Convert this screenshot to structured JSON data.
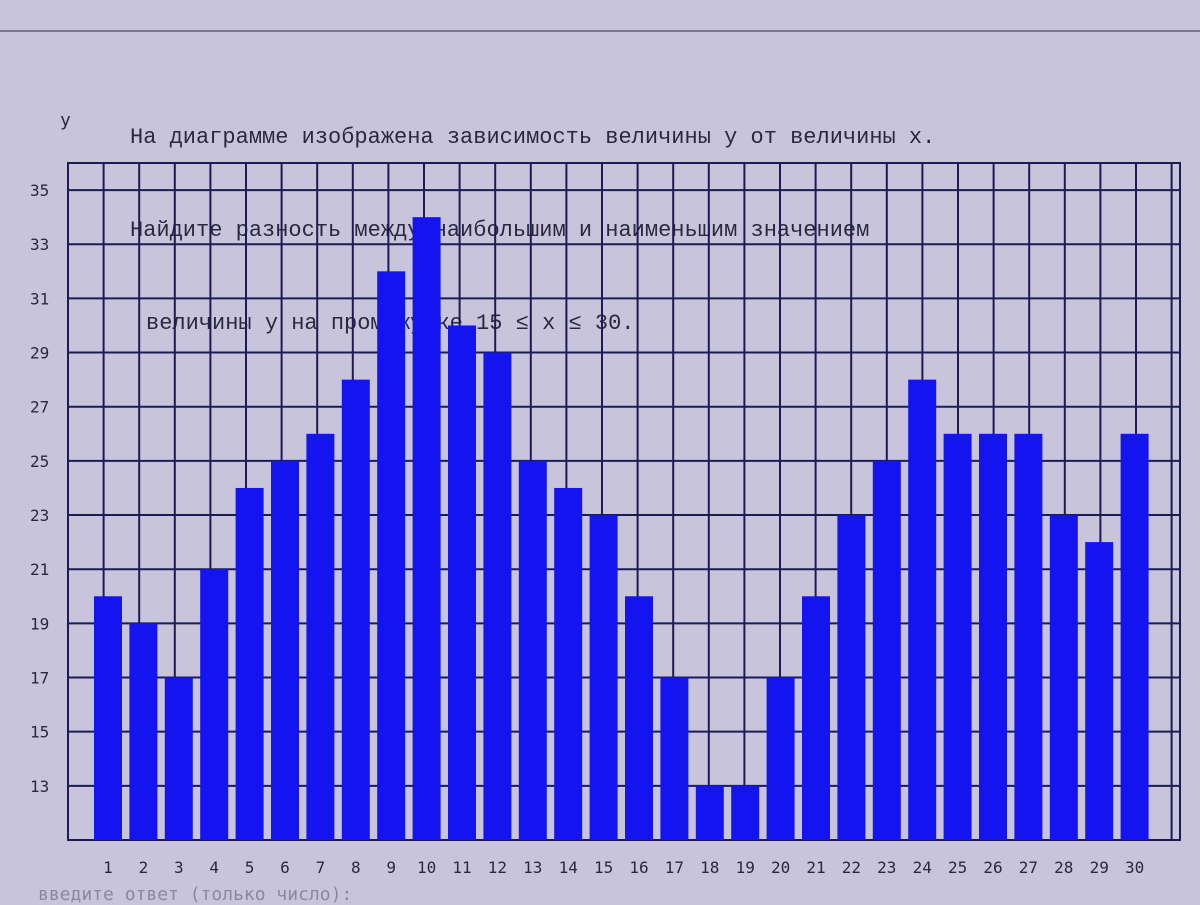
{
  "title_lines": [
    "На диаграмме изображена зависимость величины y от величины x.",
    "Найдите разность между наибольшим и наименьшим значением",
    "величины y на промежутке 15 ≤ x ≤ 30."
  ],
  "answer_prompt": "введите ответ (только число):",
  "chart_data": {
    "type": "bar",
    "title": "",
    "xlabel": "",
    "ylabel": "y",
    "categories": [
      "1",
      "2",
      "3",
      "4",
      "5",
      "6",
      "7",
      "8",
      "9",
      "10",
      "11",
      "12",
      "13",
      "14",
      "15",
      "16",
      "17",
      "18",
      "19",
      "20",
      "21",
      "22",
      "23",
      "24",
      "25",
      "26",
      "27",
      "28",
      "29",
      "30"
    ],
    "values": [
      20,
      19,
      17,
      21,
      24,
      25,
      26,
      28,
      32,
      34,
      30,
      29,
      25,
      24,
      23,
      20,
      17,
      13,
      13,
      17,
      20,
      23,
      25,
      28,
      26,
      26,
      26,
      23,
      22,
      26
    ],
    "ylim": [
      11,
      36
    ],
    "yticks": [
      "13",
      "15",
      "17",
      "19",
      "21",
      "23",
      "25",
      "27",
      "29",
      "31",
      "33",
      "35"
    ],
    "grid": true,
    "bar_color": "#1414f0",
    "grid_color": "#1c1c55"
  }
}
